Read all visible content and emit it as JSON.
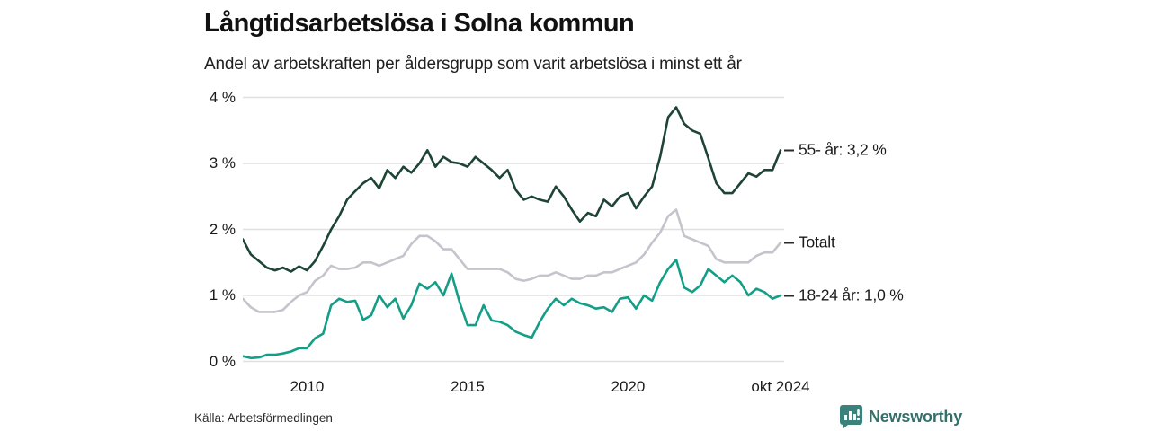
{
  "header": {
    "title": "Långtidsarbetslösa i Solna kommun",
    "subtitle": "Andel av arbetskraften per åldersgrupp som varit arbetslösa i minst ett år"
  },
  "footer": {
    "source": "Källa: Arbetsförmedlingen",
    "brand": "Newsworthy"
  },
  "colors": {
    "background": "#ffffff",
    "grid": "#e0e0e0",
    "axis_text": "#1a1a1a",
    "annotation_dash": "#2a2a2a",
    "brand_teal": "#3a837c"
  },
  "chart_data": {
    "type": "line",
    "title": "Långtidsarbetslösa i Solna kommun",
    "subtitle": "Andel av arbetskraften per åldersgrupp som varit arbetslösa i minst ett år",
    "xlabel": "",
    "ylabel": "",
    "grid": "horizontal",
    "legend_position": "right-end-labels",
    "xlim": [
      2008,
      2024.75
    ],
    "ylim": [
      0,
      4
    ],
    "x_start": 2008,
    "x_step": 0.25,
    "x_axis_ticks": [
      {
        "value": 2010,
        "label": "2010"
      },
      {
        "value": 2015,
        "label": "2015"
      },
      {
        "value": 2020,
        "label": "2020"
      },
      {
        "value": 2024.75,
        "label": "okt 2024"
      }
    ],
    "y_axis_ticks": [
      {
        "value": 0,
        "label": "0 %"
      },
      {
        "value": 1,
        "label": "1 %"
      },
      {
        "value": 2,
        "label": "2 %"
      },
      {
        "value": 3,
        "label": "3 %"
      },
      {
        "value": 4,
        "label": "4 %"
      }
    ],
    "series": [
      {
        "name": "Totalt",
        "end_label": "Totalt",
        "end_value": 1.8,
        "color": "#c5c4cc",
        "values": [
          0.95,
          0.82,
          0.75,
          0.75,
          0.75,
          0.78,
          0.9,
          1.0,
          1.05,
          1.22,
          1.3,
          1.45,
          1.4,
          1.4,
          1.42,
          1.5,
          1.5,
          1.45,
          1.5,
          1.55,
          1.6,
          1.78,
          1.9,
          1.9,
          1.82,
          1.7,
          1.7,
          1.55,
          1.4,
          1.4,
          1.4,
          1.4,
          1.4,
          1.35,
          1.25,
          1.22,
          1.25,
          1.3,
          1.3,
          1.35,
          1.3,
          1.25,
          1.25,
          1.3,
          1.3,
          1.35,
          1.35,
          1.4,
          1.45,
          1.5,
          1.62,
          1.8,
          1.95,
          2.2,
          2.3,
          1.9,
          1.85,
          1.8,
          1.75,
          1.55,
          1.5,
          1.5,
          1.5,
          1.5,
          1.6,
          1.65,
          1.65,
          1.8
        ]
      },
      {
        "name": "18-24 år",
        "end_label": "18-24 år: 1,0 %",
        "end_value": 1.0,
        "color": "#149e87",
        "values": [
          0.08,
          0.05,
          0.06,
          0.1,
          0.1,
          0.12,
          0.15,
          0.2,
          0.2,
          0.35,
          0.42,
          0.85,
          0.95,
          0.9,
          0.92,
          0.63,
          0.7,
          1.0,
          0.82,
          0.95,
          0.65,
          0.85,
          1.18,
          1.1,
          1.2,
          1.0,
          1.33,
          0.9,
          0.55,
          0.55,
          0.85,
          0.62,
          0.6,
          0.55,
          0.45,
          0.4,
          0.36,
          0.6,
          0.8,
          0.95,
          0.85,
          0.95,
          0.88,
          0.85,
          0.8,
          0.82,
          0.75,
          0.95,
          0.97,
          0.8,
          1.0,
          0.92,
          1.2,
          1.4,
          1.54,
          1.12,
          1.05,
          1.15,
          1.4,
          1.3,
          1.2,
          1.3,
          1.2,
          1.0,
          1.1,
          1.05,
          0.95,
          1.0
        ]
      },
      {
        "name": "55- år",
        "end_label": "55- år: 3,2 %",
        "end_value": 3.2,
        "color": "#1d4434",
        "values": [
          1.85,
          1.62,
          1.52,
          1.42,
          1.38,
          1.42,
          1.36,
          1.44,
          1.38,
          1.52,
          1.75,
          2.0,
          2.2,
          2.45,
          2.58,
          2.7,
          2.78,
          2.62,
          2.9,
          2.78,
          2.95,
          2.86,
          3.0,
          3.2,
          2.95,
          3.1,
          3.02,
          3.0,
          2.95,
          3.1,
          3.0,
          2.9,
          2.78,
          2.9,
          2.6,
          2.45,
          2.5,
          2.45,
          2.42,
          2.65,
          2.5,
          2.3,
          2.12,
          2.25,
          2.2,
          2.45,
          2.35,
          2.5,
          2.55,
          2.32,
          2.5,
          2.65,
          3.1,
          3.7,
          3.85,
          3.6,
          3.5,
          3.45,
          3.08,
          2.7,
          2.55,
          2.55,
          2.7,
          2.85,
          2.8,
          2.9,
          2.9,
          3.2
        ]
      }
    ]
  }
}
